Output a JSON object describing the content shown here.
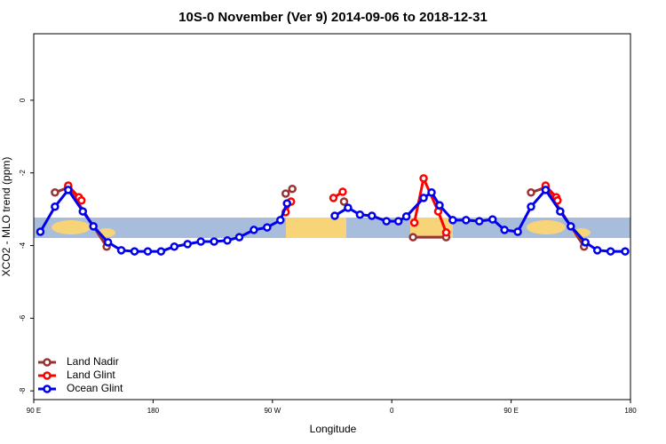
{
  "chart_data": {
    "type": "line",
    "title": "10S-0 November (Ver 9)   2014-09-06 to 2018-12-31",
    "x_label": "Longitude",
    "y_label": "XCO2 - MLO trend (ppm)",
    "xlim": [
      90,
      540
    ],
    "ylim": [
      -8.24,
      1.83
    ],
    "xticks": [
      {
        "value": 90,
        "label": "90 E"
      },
      {
        "value": 180,
        "label": "180"
      },
      {
        "value": 270,
        "label": "90 W"
      },
      {
        "value": 360,
        "label": "0"
      },
      {
        "value": 450,
        "label": "90 E"
      },
      {
        "value": 540,
        "label": "180"
      }
    ],
    "yticks": [
      0,
      -2,
      -4,
      -6,
      -8
    ],
    "legend": "bottom-left",
    "series": [
      {
        "name": "Land Nadir",
        "color": "#993333",
        "x": [
          106,
          116,
          145,
          200,
          280,
          285,
          310,
          324,
          340,
          376,
          401,
          420,
          465,
          476,
          505
        ],
        "values": [
          -2.54,
          -2.4,
          -4.03,
          null,
          -2.57,
          -2.44,
          null,
          -2.79,
          null,
          -3.77,
          -3.77,
          null,
          -2.54,
          -2.4,
          -4.03
        ]
      },
      {
        "name": "Land Glint",
        "color": "#ff0000",
        "x": [
          116,
          124,
          126,
          200,
          280,
          284,
          300,
          316,
          323,
          350,
          377,
          384,
          395,
          401,
          440,
          476,
          484,
          485
        ],
        "values": [
          -2.35,
          -2.67,
          -2.76,
          null,
          -3.08,
          -2.79,
          null,
          -2.69,
          -2.52,
          null,
          -3.37,
          -2.15,
          -3.06,
          -3.64,
          null,
          -2.35,
          -2.67,
          -2.76
        ]
      },
      {
        "name": "Ocean Glint",
        "color": "#0000ee",
        "x": [
          95,
          106,
          116,
          127,
          135,
          146,
          156,
          166,
          176,
          186,
          196,
          206,
          216,
          226,
          236,
          245,
          256,
          266,
          276,
          281,
          300,
          317,
          327,
          336,
          345,
          356,
          365,
          371,
          384,
          390,
          396,
          406,
          416,
          426,
          436,
          445,
          455,
          465,
          476,
          487,
          495,
          506,
          515,
          525,
          536
        ],
        "values": [
          -3.62,
          -2.93,
          -2.47,
          -3.06,
          -3.47,
          -3.91,
          -4.13,
          -4.16,
          -4.16,
          -4.16,
          -4.03,
          -3.96,
          -3.89,
          -3.89,
          -3.86,
          -3.77,
          -3.57,
          -3.5,
          -3.3,
          -2.84,
          null,
          -3.18,
          -2.96,
          -3.15,
          -3.18,
          -3.33,
          -3.33,
          -3.2,
          -2.69,
          -2.54,
          -2.89,
          -3.3,
          -3.3,
          -3.33,
          -3.28,
          -3.57,
          -3.62,
          -2.93,
          -2.47,
          -3.06,
          -3.47,
          -3.91,
          -4.13,
          -4.16,
          -4.16
        ]
      }
    ]
  }
}
